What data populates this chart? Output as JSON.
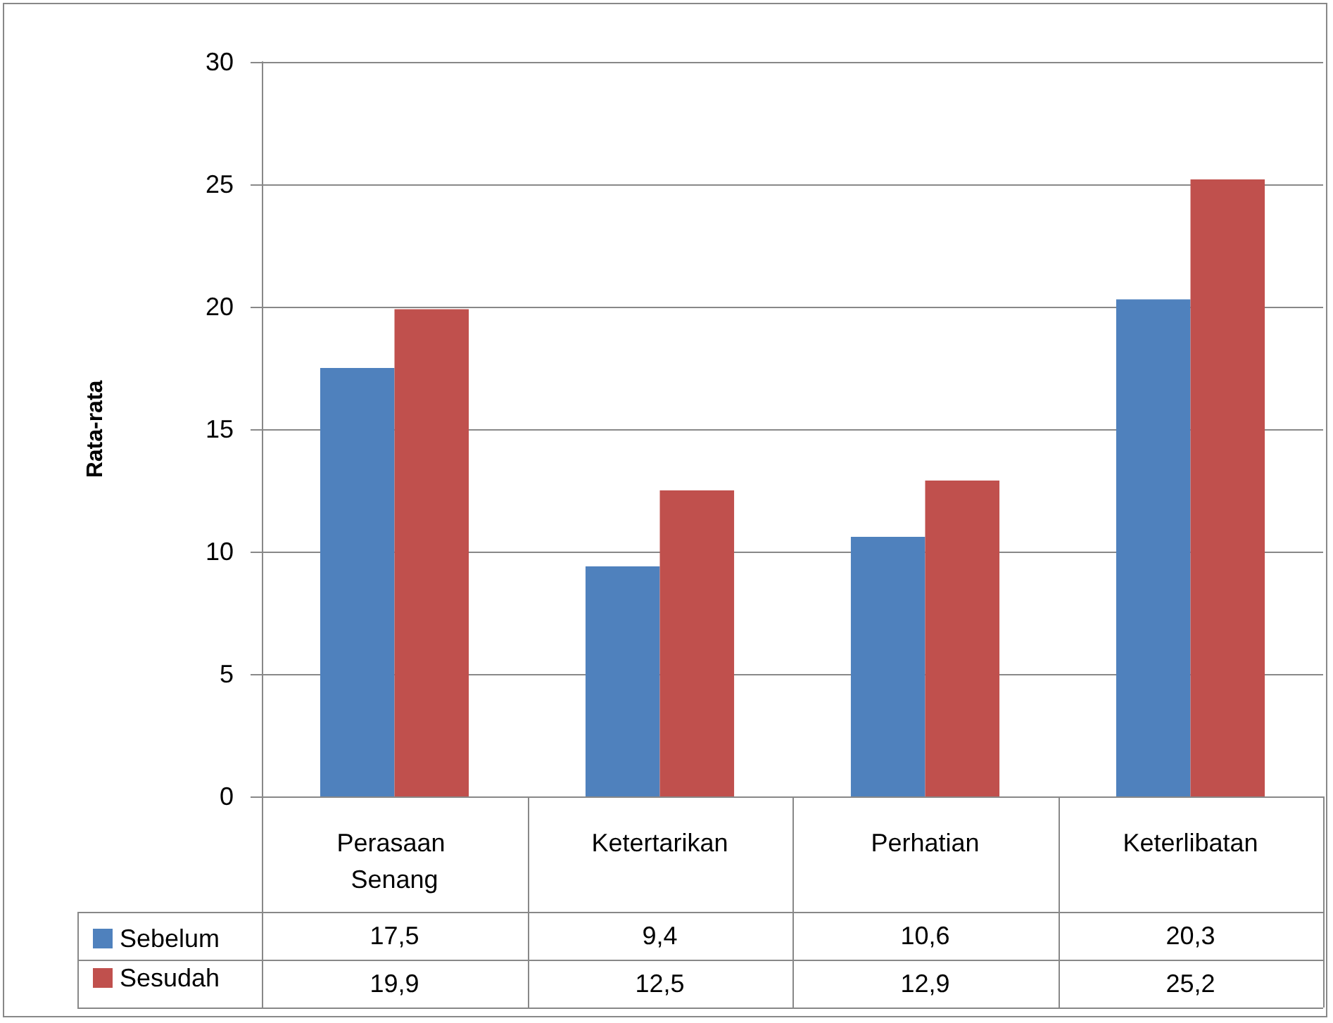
{
  "chart_data": {
    "type": "bar",
    "ylabel": "Rata-rata",
    "categories": [
      "Perasaan Senang",
      "Ketertarikan",
      "Perhatian",
      "Keterlibatan"
    ],
    "series": [
      {
        "name": "Sebelum",
        "color": "#4f81bd",
        "values": [
          17.5,
          9.4,
          10.6,
          20.3
        ],
        "value_labels": [
          "17,5",
          "9,4",
          "10,6",
          "20,3"
        ]
      },
      {
        "name": "Sesudah",
        "color": "#c0504d",
        "values": [
          19.9,
          12.5,
          12.9,
          25.2
        ],
        "value_labels": [
          "19,9",
          "12,5",
          "12,9",
          "25,2"
        ]
      }
    ],
    "ylim": [
      0,
      30
    ],
    "yticks": [
      0,
      5,
      10,
      15,
      20,
      25,
      30
    ],
    "grid": "y",
    "legend": "bottom"
  }
}
